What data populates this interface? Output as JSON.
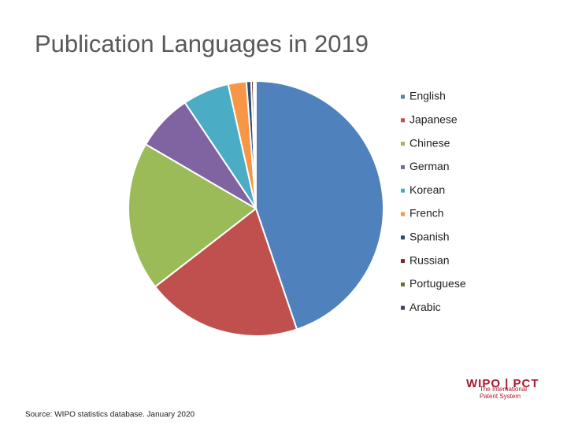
{
  "chart_data": {
    "type": "pie",
    "title": "Publication Languages in 2019",
    "categories": [
      "English",
      "Japanese",
      "Chinese",
      "German",
      "Korean",
      "French",
      "Spanish",
      "Russian",
      "Portuguese",
      "Arabic"
    ],
    "values": [
      44.8,
      19.7,
      18.9,
      7.2,
      5.9,
      2.3,
      0.6,
      0.3,
      0.2,
      0.1
    ],
    "colors": [
      "#4f81bd",
      "#c0504d",
      "#9bbb59",
      "#8064a2",
      "#4bacc6",
      "#f79646",
      "#2c4d75",
      "#772c2a",
      "#5f7530",
      "#4d3b62"
    ],
    "legend": "right"
  },
  "source": "Source: WIPO statistics database. January 2020",
  "logo": {
    "name": "WIPO | PCT",
    "tagline_1": "The International",
    "tagline_2": "Patent System"
  }
}
